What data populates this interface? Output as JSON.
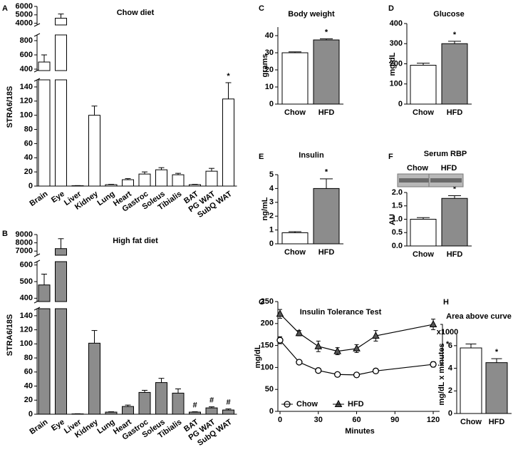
{
  "chart_data": [
    {
      "type": "bar",
      "panel": "A",
      "title": "Chow diet",
      "y_label": "STRA6/18S",
      "categories": [
        "Brain",
        "Eye",
        "Liver",
        "Kidney",
        "Lung",
        "Heart",
        "Gastroc",
        "Soleus",
        "Tibialis",
        "BAT",
        "PG WAT",
        "SubQ WAT"
      ],
      "values": [
        500,
        4600,
        0.5,
        100,
        2,
        9,
        17,
        23,
        16,
        2,
        21,
        123
      ],
      "errors": [
        100,
        500,
        0.2,
        13,
        0.5,
        1.5,
        3,
        3,
        2,
        0.5,
        4,
        23
      ],
      "color": "#ffffff",
      "segments": [
        {
          "ylim": [
            0,
            150
          ],
          "yticks": [
            0,
            20,
            40,
            60,
            80,
            100,
            120,
            140
          ]
        },
        {
          "ylim": [
            380,
            880
          ],
          "yticks": [
            400,
            600,
            800
          ]
        },
        {
          "ylim": [
            3800,
            6000
          ],
          "yticks": [
            4000,
            5000,
            6000
          ]
        }
      ],
      "annotations": [
        {
          "text": "*",
          "category": "SubQ WAT"
        }
      ]
    },
    {
      "type": "bar",
      "panel": "B",
      "title": "High fat diet",
      "y_label": "STRA6/18S",
      "categories": [
        "Brain",
        "Eye",
        "Liver",
        "Kidney",
        "Lung",
        "Heart",
        "Gastroc",
        "Soleus",
        "Tibialis",
        "BAT",
        "PG WAT",
        "SubQ WAT"
      ],
      "values": [
        480,
        7300,
        0.5,
        101,
        3,
        11,
        31,
        45,
        30,
        3,
        9,
        6
      ],
      "errors": [
        65,
        1200,
        0.2,
        18,
        0.5,
        2,
        3,
        6,
        6,
        0.5,
        1.5,
        1.5
      ],
      "color": "#8c8c8c",
      "segments": [
        {
          "ylim": [
            0,
            150
          ],
          "yticks": [
            0,
            20,
            40,
            60,
            80,
            100,
            120,
            140
          ]
        },
        {
          "ylim": [
            380,
            620
          ],
          "yticks": [
            400,
            500,
            600
          ]
        },
        {
          "ylim": [
            6500,
            9000
          ],
          "yticks": [
            7000,
            8000,
            9000
          ]
        }
      ],
      "annotations": [
        {
          "text": "#",
          "category": "BAT"
        },
        {
          "text": "#",
          "category": "PG WAT"
        },
        {
          "text": "#",
          "category": "SubQ WAT"
        }
      ]
    },
    {
      "type": "bar",
      "panel": "C",
      "title": "Body weight",
      "y_label": "grams",
      "categories": [
        "Chow",
        "HFD"
      ],
      "values": [
        30,
        37.5
      ],
      "errors": [
        0.5,
        0.6
      ],
      "colors": [
        "#ffffff",
        "#8c8c8c"
      ],
      "ylim": [
        0,
        45
      ],
      "yticks": [
        0,
        10,
        20,
        30,
        40
      ],
      "annotations": [
        {
          "text": "*",
          "category": "HFD"
        }
      ]
    },
    {
      "type": "bar",
      "panel": "D",
      "title": "Glucose",
      "y_label": "mg/dL",
      "categories": [
        "Chow",
        "HFD"
      ],
      "values": [
        193,
        300
      ],
      "errors": [
        10,
        12
      ],
      "colors": [
        "#ffffff",
        "#8c8c8c"
      ],
      "ylim": [
        0,
        400
      ],
      "yticks": [
        0,
        100,
        200,
        300,
        400
      ],
      "annotations": [
        {
          "text": "*",
          "category": "HFD"
        }
      ]
    },
    {
      "type": "bar",
      "panel": "E",
      "title": "Insulin",
      "y_label": "ng/mL",
      "categories": [
        "Chow",
        "HFD"
      ],
      "values": [
        0.8,
        4.0
      ],
      "errors": [
        0.08,
        0.7
      ],
      "colors": [
        "#ffffff",
        "#8c8c8c"
      ],
      "ylim": [
        0,
        5
      ],
      "yticks": [
        0,
        1,
        2,
        3,
        4,
        5
      ],
      "annotations": [
        {
          "text": "*",
          "category": "HFD"
        }
      ]
    },
    {
      "type": "bar",
      "panel": "F",
      "title": "Serum RBP",
      "y_label": "AU",
      "blot_labels": [
        "Chow",
        "HFD"
      ],
      "categories": [
        "Chow",
        "HFD"
      ],
      "values": [
        1.0,
        1.78
      ],
      "errors": [
        0.06,
        0.1
      ],
      "colors": [
        "#ffffff",
        "#8c8c8c"
      ],
      "ylim": [
        0,
        2.0
      ],
      "yticks": [
        {
          "value": 0,
          "label": "0.0"
        },
        {
          "value": 0.5,
          "label": "0.5"
        },
        {
          "value": 1,
          "label": "1.0"
        },
        {
          "value": 1.5,
          "label": "1.5"
        },
        {
          "value": 2,
          "label": "2.0"
        }
      ],
      "annotations": [
        {
          "text": "*",
          "category": "HFD"
        }
      ]
    },
    {
      "type": "line",
      "panel": "G",
      "title": "Insulin Tolerance Test",
      "x_label": "Minutes",
      "y_label": "mg/dL",
      "x": [
        0,
        15,
        30,
        45,
        60,
        75,
        120
      ],
      "series": [
        {
          "name": "Chow",
          "color": "#000000",
          "marker": "circle",
          "values": [
            162,
            112,
            93,
            84,
            83,
            92,
            107
          ],
          "errors": [
            8,
            5,
            5,
            4,
            4,
            5,
            6
          ]
        },
        {
          "name": "HFD",
          "color": "#000000",
          "marker": "triangle",
          "values": [
            222,
            178,
            148,
            137,
            143,
            172,
            198
          ],
          "errors": [
            10,
            6,
            12,
            8,
            9,
            12,
            12
          ]
        }
      ],
      "xlim": [
        0,
        125
      ],
      "xticks": [
        0,
        30,
        60,
        90,
        120
      ],
      "ylim": [
        0,
        250
      ],
      "yticks": [
        0,
        50,
        100,
        150,
        200,
        250
      ],
      "legend": "lower left",
      "annotations": [
        {
          "text": "*"
        }
      ]
    },
    {
      "type": "bar",
      "panel": "H",
      "title": "Area above curve",
      "y_label": "mg/dL x minutes",
      "y_multiplier": "x1000",
      "categories": [
        "Chow",
        "HFD"
      ],
      "values": [
        5.8,
        4.5
      ],
      "errors": [
        0.35,
        0.35
      ],
      "colors": [
        "#ffffff",
        "#8c8c8c"
      ],
      "ylim": [
        0,
        7
      ],
      "yticks": [
        0,
        2,
        4,
        6
      ],
      "annotations": [
        {
          "text": "*",
          "category": "HFD"
        }
      ]
    }
  ]
}
